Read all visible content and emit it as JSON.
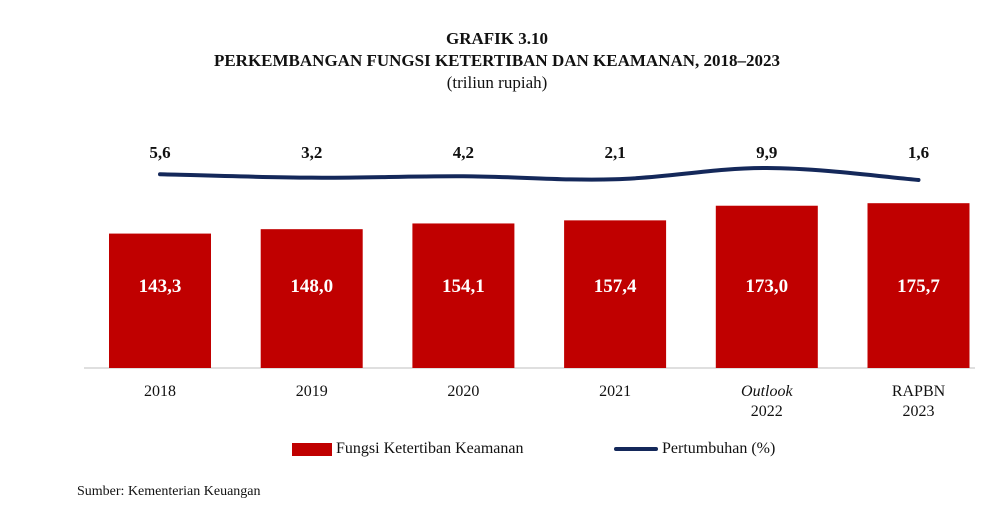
{
  "header": {
    "title_line1": "GRAFIK 3.10",
    "title_line2": "PERKEMBANGAN FUNGSI KETERTIBAN DAN KEAMANAN, 2018–2023",
    "subtitle": "(triliun rupiah)"
  },
  "chart_data": {
    "type": "bar",
    "categories": [
      [
        "2018"
      ],
      [
        "2019"
      ],
      [
        "2020"
      ],
      [
        "2021"
      ],
      [
        "Outlook",
        "2022"
      ],
      [
        "RAPBN",
        "2023"
      ]
    ],
    "italic_first_line": [
      false,
      false,
      false,
      false,
      true,
      false
    ],
    "series": [
      {
        "name": "Fungsi Ketertiban Keamanan",
        "type": "bar",
        "color": "#C00000",
        "values": [
          143.3,
          148.0,
          154.1,
          157.4,
          173.0,
          175.7
        ],
        "labels": [
          "143,3",
          "148,0",
          "154,1",
          "157,4",
          "173,0",
          "175,7"
        ]
      },
      {
        "name": "Pertumbuhan (%)",
        "type": "line",
        "color": "#14285A",
        "values": [
          5.6,
          3.2,
          4.2,
          2.1,
          9.9,
          1.6
        ],
        "labels": [
          "5,6",
          "3,2",
          "4,2",
          "2,1",
          "9,9",
          "1,6"
        ]
      }
    ],
    "legend_position": "bottom",
    "grid": false
  },
  "footer": {
    "source": "Sumber: Kementerian Keuangan"
  }
}
